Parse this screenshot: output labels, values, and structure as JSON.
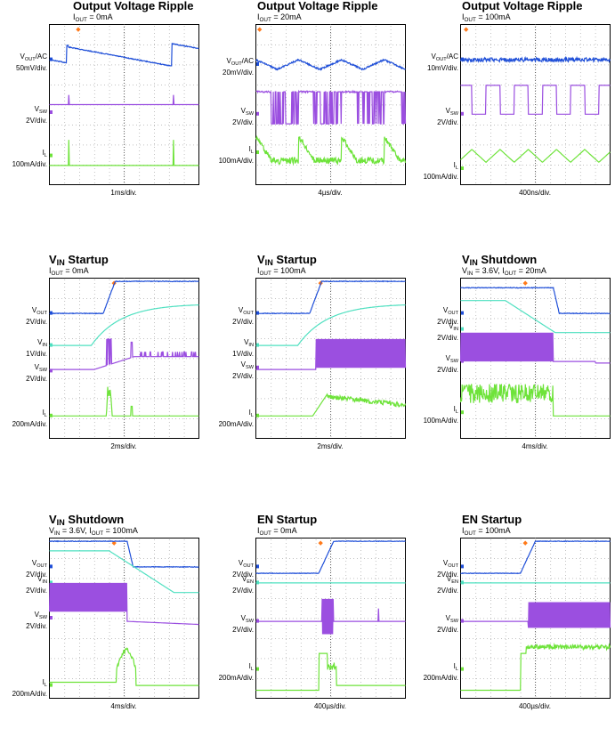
{
  "colors": {
    "vout": "#1f4fd8",
    "vsw": "#9b4fe0",
    "il": "#6ee33a",
    "vin": "#4fe0c0",
    "grid": "#a0a0a0",
    "trigger": "#ff7a1a"
  },
  "chart_data": [
    {
      "type": "line",
      "title": "Output Voltage Ripple",
      "subtitle": {
        "base": "I",
        "sub": "OUT",
        "rest": " = 0mA"
      },
      "channels": [
        {
          "name": "V",
          "sub": "OUT",
          "rest": "/AC",
          "scale": "50mV/div."
        },
        {
          "name": "V",
          "sub": "SW",
          "rest": "",
          "scale": "2V/div."
        },
        {
          "name": "I",
          "sub": "L",
          "rest": "",
          "scale": "100mA/div."
        }
      ],
      "timebase": "1ms/div."
    },
    {
      "type": "line",
      "title": "Output Voltage Ripple",
      "subtitle": {
        "base": "I",
        "sub": "OUT",
        "rest": " = 20mA"
      },
      "channels": [
        {
          "name": "V",
          "sub": "OUT",
          "rest": "/AC",
          "scale": "20mV/div."
        },
        {
          "name": "V",
          "sub": "SW",
          "rest": "",
          "scale": "2V/div."
        },
        {
          "name": "I",
          "sub": "L",
          "rest": "",
          "scale": "100mA/div."
        }
      ],
      "timebase": "4µs/div."
    },
    {
      "type": "line",
      "title": "Output Voltage Ripple",
      "subtitle": {
        "base": "I",
        "sub": "OUT",
        "rest": " = 100mA"
      },
      "channels": [
        {
          "name": "V",
          "sub": "OUT",
          "rest": "/AC",
          "scale": "10mV/div."
        },
        {
          "name": "V",
          "sub": "SW",
          "rest": "",
          "scale": "2V/div."
        },
        {
          "name": "I",
          "sub": "L",
          "rest": "",
          "scale": "100mA/div."
        }
      ],
      "timebase": "400ns/div."
    },
    {
      "type": "line",
      "title": "V",
      "title_sub": "IN",
      "title_rest": " Startup",
      "subtitle": {
        "base": "I",
        "sub": "OUT",
        "rest": " = 0mA"
      },
      "channels": [
        {
          "name": "V",
          "sub": "OUT",
          "rest": "",
          "scale": "2V/div."
        },
        {
          "name": "V",
          "sub": "IN",
          "rest": "",
          "scale": "1V/div."
        },
        {
          "name": "V",
          "sub": "SW",
          "rest": "",
          "scale": "2V/div."
        },
        {
          "name": "I",
          "sub": "L",
          "rest": "",
          "scale": "200mA/div."
        }
      ],
      "timebase": "2ms/div."
    },
    {
      "type": "line",
      "title": "V",
      "title_sub": "IN",
      "title_rest": " Startup",
      "subtitle": {
        "base": "I",
        "sub": "OUT",
        "rest": " = 100mA"
      },
      "channels": [
        {
          "name": "V",
          "sub": "OUT",
          "rest": "",
          "scale": "2V/div."
        },
        {
          "name": "V",
          "sub": "IN",
          "rest": "",
          "scale": "1V/div."
        },
        {
          "name": "V",
          "sub": "SW",
          "rest": "",
          "scale": "2V/div."
        },
        {
          "name": "I",
          "sub": "L",
          "rest": "",
          "scale": "200mA/div."
        }
      ],
      "timebase": "2ms/div."
    },
    {
      "type": "line",
      "title": "V",
      "title_sub": "IN",
      "title_rest": " Shutdown",
      "subtitle": {
        "base": "V",
        "sub": "IN",
        "rest": " = 3.6V, I",
        "sub2": "OUT",
        "rest2": " = 20mA"
      },
      "channels": [
        {
          "name": "V",
          "sub": "OUT",
          "rest": "",
          "scale": "2V/div."
        },
        {
          "name": "V",
          "sub": "IN",
          "rest": "",
          "scale": "2V/div."
        },
        {
          "name": "V",
          "sub": "SW",
          "rest": "",
          "scale": "2V/div."
        },
        {
          "name": "I",
          "sub": "L",
          "rest": "",
          "scale": "100mA/div."
        }
      ],
      "timebase": "4ms/div."
    },
    {
      "type": "line",
      "title": "V",
      "title_sub": "IN",
      "title_rest": " Shutdown",
      "subtitle": {
        "base": "V",
        "sub": "IN",
        "rest": " = 3.6V, I",
        "sub2": "OUT",
        "rest2": " = 100mA"
      },
      "channels": [
        {
          "name": "V",
          "sub": "OUT",
          "rest": "",
          "scale": "2V/div."
        },
        {
          "name": "V",
          "sub": "IN",
          "rest": "",
          "scale": "2V/div."
        },
        {
          "name": "V",
          "sub": "SW",
          "rest": "",
          "scale": "2V/div."
        },
        {
          "name": "I",
          "sub": "L",
          "rest": "",
          "scale": "200mA/div."
        }
      ],
      "timebase": "4ms/div."
    },
    {
      "type": "line",
      "title": "EN Startup",
      "subtitle": {
        "base": "I",
        "sub": "OUT",
        "rest": " = 0mA"
      },
      "channels": [
        {
          "name": "V",
          "sub": "OUT",
          "rest": "",
          "scale": "2V/div."
        },
        {
          "name": "V",
          "sub": "EN",
          "rest": "",
          "scale": "2V/div."
        },
        {
          "name": "V",
          "sub": "SW",
          "rest": "",
          "scale": "2V/div."
        },
        {
          "name": "I",
          "sub": "L",
          "rest": "",
          "scale": "200mA/div."
        }
      ],
      "timebase": "400µs/div."
    },
    {
      "type": "line",
      "title": "EN Startup",
      "subtitle": {
        "base": "I",
        "sub": "OUT",
        "rest": " = 100mA"
      },
      "channels": [
        {
          "name": "V",
          "sub": "OUT",
          "rest": "",
          "scale": "2V/div."
        },
        {
          "name": "V",
          "sub": "EN",
          "rest": "",
          "scale": "2V/div."
        },
        {
          "name": "V",
          "sub": "SW",
          "rest": "",
          "scale": "2V/div."
        },
        {
          "name": "I",
          "sub": "L",
          "rest": "",
          "scale": "200mA/div."
        }
      ],
      "timebase": "400µs/div."
    }
  ]
}
